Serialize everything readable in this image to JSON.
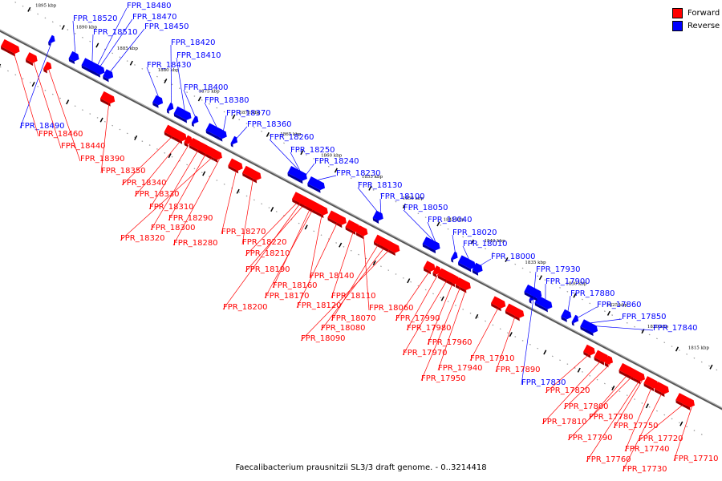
{
  "legend": [
    {
      "label": "Forward",
      "color": "#ff0000"
    },
    {
      "label": "Reverse",
      "color": "#0000ff"
    }
  ],
  "caption": "Faecalibacterium prausnitzii SL3/3 draft genome. - 0..3214418",
  "colors": {
    "forward": "#ff0000",
    "reverse": "#0000ff",
    "backbone": "#808080"
  },
  "kbp_markers": [
    "1895 kbp",
    "1890 kbp",
    "1885 kbp",
    "1880 kbp",
    "1875 kbp",
    "1870 kbp",
    "1865 kbp",
    "1860 kbp",
    "1855 kbp",
    "1850 kbp",
    "1845 kbp",
    "1840 kbp",
    "1835 kbp",
    "1830 kbp",
    "1825 kbp",
    "1820 kbp",
    "1815 kbp",
    "1810 kbp"
  ],
  "reverse_genes": [
    "FPR_18480",
    "FPR_18520",
    "FPR_18470",
    "FPR_18510",
    "FPR_18450",
    "FPR_18420",
    "FPR_18410",
    "FPR_18430",
    "FPR_18400",
    "FPR_18380",
    "FPR_18370",
    "FPR_18360",
    "FPR_18260",
    "FPR_18250",
    "FPR_18240",
    "FPR_18230",
    "FPR_18130",
    "FPR_18100",
    "FPR_18050",
    "FPR_18040",
    "FPR_18020",
    "FPR_18010",
    "FPR_18000",
    "FPR_17930",
    "FPR_17900",
    "FPR_17880",
    "FPR_17860",
    "FPR_17850",
    "FPR_17840",
    "FPR_18490",
    "FPR_17830"
  ],
  "forward_genes": [
    "FPR_18460",
    "FPR_18440",
    "FPR_18390",
    "FPR_18350",
    "FPR_18340",
    "FPR_18330",
    "FPR_18310",
    "FPR_18290",
    "FPR_18300",
    "FPR_18320",
    "FPR_18280",
    "FPR_18270",
    "FPR_18220",
    "FPR_18210",
    "FPR_18190",
    "FPR_18140",
    "FPR_18160",
    "FPR_18170",
    "FPR_18200",
    "FPR_18110",
    "FPR_18120",
    "FPR_18060",
    "FPR_18070",
    "FPR_18080",
    "FPR_18090",
    "FPR_17990",
    "FPR_17980",
    "FPR_17960",
    "FPR_17970",
    "FPR_17940",
    "FPR_17950",
    "FPR_17910",
    "FPR_17890",
    "FPR_17820",
    "FPR_17800",
    "FPR_17810",
    "FPR_17780",
    "FPR_17790",
    "FPR_17750",
    "FPR_17740",
    "FPR_17720",
    "FPR_17760",
    "FPR_17710",
    "FPR_17730"
  ]
}
